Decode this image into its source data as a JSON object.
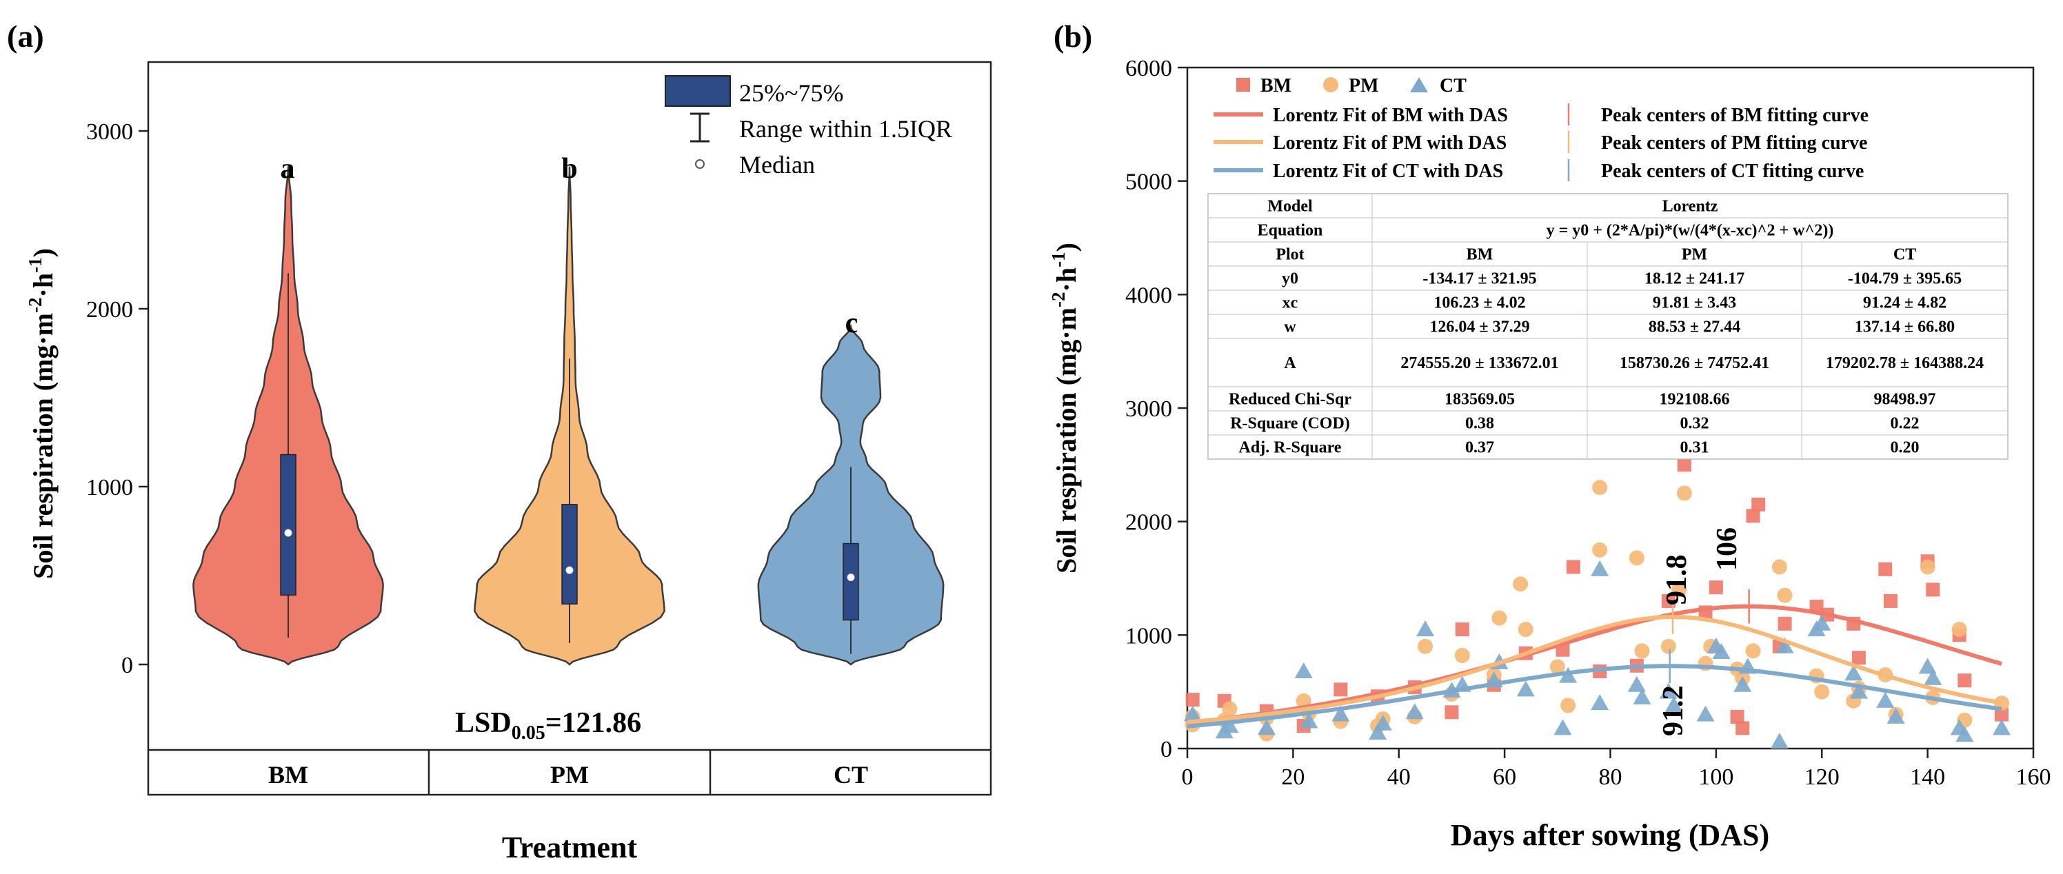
{
  "chart_data": [
    {
      "panel_label": "(a)",
      "type": "violin",
      "categories": [
        "BM",
        "PM",
        "CT"
      ],
      "xlabel": "Treatment",
      "ylabel_main": "Soil respiration (mg·m",
      "ylabel_sup1": "-2",
      "ylabel_mid": "·h",
      "ylabel_sup2": "-1",
      "ylabel_end": ")",
      "ylim": [
        -500,
        3500
      ],
      "yticks": [
        0,
        1000,
        2000,
        3000
      ],
      "letters": [
        "a",
        "b",
        "c"
      ],
      "lsd_main": "LSD",
      "lsd_sub": "0.05",
      "lsd_value": "=121.86",
      "legend": {
        "box_label": "25%~75%",
        "whisker_label": "Range within 1.5IQR",
        "median_label": "Median"
      },
      "colors": {
        "BM": "#ef7b6b",
        "PM": "#f6b977",
        "CT": "#7ea9cd",
        "box": "#2d4a86"
      },
      "series": [
        {
          "name": "BM",
          "min": 0,
          "max": 2800,
          "q1": 390,
          "median": 740,
          "q3": 1180,
          "whisker_low": 150,
          "whisker_high": 2200,
          "density_profile": [
            [
              0,
              0
            ],
            [
              100,
              0.42
            ],
            [
              300,
              0.78
            ],
            [
              450,
              0.8
            ],
            [
              600,
              0.72
            ],
            [
              800,
              0.58
            ],
            [
              1000,
              0.45
            ],
            [
              1200,
              0.36
            ],
            [
              1400,
              0.28
            ],
            [
              1600,
              0.2
            ],
            [
              1800,
              0.13
            ],
            [
              2000,
              0.08
            ],
            [
              2200,
              0.05
            ],
            [
              2400,
              0.035
            ],
            [
              2600,
              0.025
            ],
            [
              2800,
              0
            ]
          ]
        },
        {
          "name": "PM",
          "min": 0,
          "max": 2800,
          "q1": 340,
          "median": 530,
          "q3": 900,
          "whisker_low": 120,
          "whisker_high": 1720,
          "density_profile": [
            [
              0,
              0
            ],
            [
              100,
              0.4
            ],
            [
              300,
              0.8
            ],
            [
              450,
              0.78
            ],
            [
              600,
              0.6
            ],
            [
              800,
              0.4
            ],
            [
              1000,
              0.26
            ],
            [
              1200,
              0.15
            ],
            [
              1400,
              0.08
            ],
            [
              1600,
              0.05
            ],
            [
              1800,
              0.045
            ],
            [
              2000,
              0.035
            ],
            [
              2200,
              0.025
            ],
            [
              2400,
              0.018
            ],
            [
              2600,
              0.01
            ],
            [
              2800,
              0
            ]
          ]
        },
        {
          "name": "CT",
          "min": 0,
          "max": 1900,
          "q1": 250,
          "median": 490,
          "q3": 680,
          "whisker_low": 60,
          "whisker_high": 1110,
          "density_profile": [
            [
              0,
              0
            ],
            [
              100,
              0.45
            ],
            [
              250,
              0.76
            ],
            [
              450,
              0.78
            ],
            [
              600,
              0.7
            ],
            [
              800,
              0.52
            ],
            [
              1000,
              0.3
            ],
            [
              1150,
              0.13
            ],
            [
              1250,
              0.08
            ],
            [
              1350,
              0.1
            ],
            [
              1500,
              0.25
            ],
            [
              1650,
              0.24
            ],
            [
              1800,
              0.1
            ],
            [
              1900,
              0
            ]
          ]
        }
      ]
    },
    {
      "panel_label": "(b)",
      "type": "scatter",
      "xlabel": "Days after sowing (DAS)",
      "ylabel_main": "Soil respiration (mg·m",
      "ylabel_sup1": "-2",
      "ylabel_mid": "·h",
      "ylabel_sup2": "-1",
      "ylabel_end": ")",
      "xlim": [
        0,
        160
      ],
      "ylim": [
        0,
        6000
      ],
      "xticks": [
        0,
        20,
        40,
        60,
        80,
        100,
        120,
        140,
        160
      ],
      "yticks": [
        0,
        1000,
        2000,
        3000,
        4000,
        5000,
        6000
      ],
      "legend": {
        "markers": [
          "BM",
          "PM",
          "CT"
        ],
        "fit_lines": [
          "Lorentz Fit of BM with DAS",
          "Lorentz Fit of PM with DAS",
          "Lorentz Fit of CT with DAS"
        ],
        "peak_lines": [
          "Peak centers of BM fitting curve",
          "Peak centers of PM fitting curve",
          "Peak centers of CT fitting curve"
        ]
      },
      "peak_labels": [
        "106",
        "91.8",
        "91.2"
      ],
      "colors": {
        "BM": "#ef7b6b",
        "PM": "#f6b977",
        "CT": "#7ea9cd"
      },
      "fits": [
        {
          "name": "BM",
          "y0": -134.17,
          "xc": 106.23,
          "w": 126.04,
          "A": 274555.2
        },
        {
          "name": "PM",
          "y0": 18.12,
          "xc": 91.81,
          "w": 88.53,
          "A": 158730.26
        },
        {
          "name": "CT",
          "y0": -104.79,
          "xc": 91.24,
          "w": 137.14,
          "A": 179202.78
        }
      ],
      "series": [
        {
          "name": "BM",
          "marker": "square",
          "points": [
            [
              1,
              430
            ],
            [
              7,
              420
            ],
            [
              15,
              330
            ],
            [
              22,
              200
            ],
            [
              29,
              520
            ],
            [
              36,
              460
            ],
            [
              43,
              540
            ],
            [
              50,
              320
            ],
            [
              52,
              1050
            ],
            [
              58,
              560
            ],
            [
              64,
              840
            ],
            [
              71,
              870
            ],
            [
              73,
              1600
            ],
            [
              78,
              680
            ],
            [
              85,
              730
            ],
            [
              91,
              1300
            ],
            [
              94,
              2500
            ],
            [
              98,
              1200
            ],
            [
              100,
              1420
            ],
            [
              104,
              280
            ],
            [
              105,
              180
            ],
            [
              107,
              2050
            ],
            [
              108,
              2150
            ],
            [
              112,
              900
            ],
            [
              113,
              1100
            ],
            [
              119,
              1250
            ],
            [
              121,
              1180
            ],
            [
              126,
              1100
            ],
            [
              127,
              800
            ],
            [
              132,
              1580
            ],
            [
              133,
              1300
            ],
            [
              140,
              1650
            ],
            [
              141,
              1400
            ],
            [
              146,
              1000
            ],
            [
              147,
              600
            ],
            [
              154,
              300
            ]
          ]
        },
        {
          "name": "PM",
          "marker": "circle",
          "points": [
            [
              1,
              210
            ],
            [
              1,
              280
            ],
            [
              7,
              250
            ],
            [
              8,
              350
            ],
            [
              15,
              130
            ],
            [
              15,
              270
            ],
            [
              22,
              420
            ],
            [
              23,
              310
            ],
            [
              29,
              240
            ],
            [
              36,
              200
            ],
            [
              37,
              260
            ],
            [
              43,
              280
            ],
            [
              45,
              900
            ],
            [
              50,
              480
            ],
            [
              52,
              820
            ],
            [
              58,
              650
            ],
            [
              59,
              1150
            ],
            [
              63,
              1450
            ],
            [
              64,
              1050
            ],
            [
              70,
              720
            ],
            [
              72,
              380
            ],
            [
              78,
              2300
            ],
            [
              78,
              1750
            ],
            [
              85,
              1680
            ],
            [
              86,
              860
            ],
            [
              91,
              900
            ],
            [
              94,
              2250
            ],
            [
              93,
              1400
            ],
            [
              98,
              750
            ],
            [
              99,
              900
            ],
            [
              104,
              700
            ],
            [
              105,
              620
            ],
            [
              107,
              860
            ],
            [
              112,
              1600
            ],
            [
              113,
              1350
            ],
            [
              119,
              640
            ],
            [
              120,
              500
            ],
            [
              126,
              420
            ],
            [
              127,
              530
            ],
            [
              132,
              650
            ],
            [
              134,
              300
            ],
            [
              140,
              1600
            ],
            [
              141,
              450
            ],
            [
              146,
              1050
            ],
            [
              147,
              250
            ],
            [
              154,
              400
            ]
          ]
        },
        {
          "name": "CT",
          "marker": "triangle",
          "points": [
            [
              1,
              300
            ],
            [
              7,
              150
            ],
            [
              8,
              200
            ],
            [
              15,
              180
            ],
            [
              22,
              680
            ],
            [
              23,
              240
            ],
            [
              29,
              300
            ],
            [
              36,
              140
            ],
            [
              37,
              220
            ],
            [
              43,
              320
            ],
            [
              45,
              1050
            ],
            [
              50,
              510
            ],
            [
              52,
              560
            ],
            [
              58,
              600
            ],
            [
              59,
              760
            ],
            [
              64,
              520
            ],
            [
              71,
              180
            ],
            [
              72,
              640
            ],
            [
              78,
              1580
            ],
            [
              78,
              400
            ],
            [
              85,
              560
            ],
            [
              86,
              450
            ],
            [
              91,
              500
            ],
            [
              92,
              380
            ],
            [
              98,
              300
            ],
            [
              100,
              900
            ],
            [
              101,
              850
            ],
            [
              105,
              560
            ],
            [
              106,
              720
            ],
            [
              112,
              60
            ],
            [
              113,
              900
            ],
            [
              119,
              1050
            ],
            [
              120,
              1100
            ],
            [
              126,
              660
            ],
            [
              127,
              500
            ],
            [
              132,
              420
            ],
            [
              134,
              280
            ],
            [
              140,
              720
            ],
            [
              141,
              620
            ],
            [
              146,
              180
            ],
            [
              147,
              120
            ],
            [
              154,
              180
            ]
          ]
        }
      ],
      "stats_table": {
        "rows": [
          [
            "Model",
            "Lorentz"
          ],
          [
            "Equation",
            "y = y0 + (2*A/pi)*(w/(4*(x-xc)^2 + w^2))"
          ],
          [
            "Plot",
            "BM",
            "PM",
            "CT"
          ],
          [
            "y0",
            "-134.17 ± 321.95",
            "18.12 ± 241.17",
            "-104.79 ± 395.65"
          ],
          [
            "xc",
            "106.23 ± 4.02",
            "91.81 ± 3.43",
            "91.24 ± 4.82"
          ],
          [
            "w",
            "126.04 ± 37.29",
            "88.53 ± 27.44",
            "137.14 ± 66.80"
          ],
          [
            "A",
            "274555.20 ± 133672.01",
            "158730.26 ± 74752.41",
            "179202.78 ± 164388.24"
          ],
          [
            "Reduced Chi-Sqr",
            "183569.05",
            "192108.66",
            "98498.97"
          ],
          [
            "R-Square (COD)",
            "0.38",
            "0.32",
            "0.22"
          ],
          [
            "Adj. R-Square",
            "0.37",
            "0.31",
            "0.20"
          ]
        ]
      }
    }
  ]
}
